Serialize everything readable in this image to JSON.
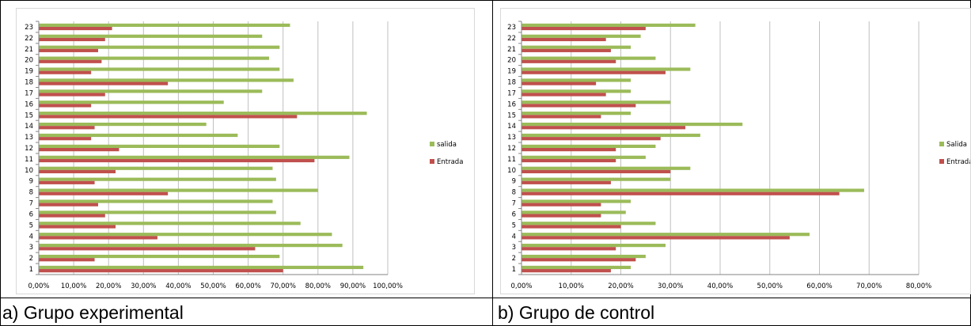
{
  "captions": {
    "a": "a) Grupo experimental",
    "b": "b) Grupo de control"
  },
  "colors": {
    "salida": "#9bbb59",
    "entrada": "#c0504d",
    "grid": "#c0c0c0",
    "axis": "#868686"
  },
  "chart_data": [
    {
      "type": "bar",
      "orientation": "horizontal",
      "categories": [
        "1",
        "2",
        "3",
        "4",
        "5",
        "6",
        "7",
        "8",
        "9",
        "10",
        "11",
        "12",
        "13",
        "14",
        "15",
        "16",
        "17",
        "18",
        "19",
        "20",
        "21",
        "22",
        "23"
      ],
      "series": [
        {
          "name": "salida",
          "color": "#9bbb59",
          "values": [
            93,
            69,
            87,
            84,
            75,
            68,
            67,
            80,
            68,
            67,
            89,
            69,
            57,
            48,
            94,
            53,
            64,
            73,
            69,
            66,
            69,
            64,
            72
          ]
        },
        {
          "name": "Entrada",
          "color": "#c0504d",
          "values": [
            70,
            16,
            62,
            34,
            22,
            19,
            17,
            37,
            16,
            22,
            79,
            23,
            15,
            16,
            74,
            15,
            19,
            37,
            15,
            18,
            17,
            19,
            21
          ]
        }
      ],
      "xticks": [
        "0,00%",
        "10,00%",
        "20,00%",
        "30,00%",
        "40,00%",
        "50,00%",
        "60,00%",
        "70,00%",
        "80,00%",
        "90,00%",
        "100,00%"
      ],
      "xlim": [
        0,
        100
      ],
      "grid": "vertical",
      "legend": "right",
      "title": "",
      "xlabel": "",
      "ylabel": ""
    },
    {
      "type": "bar",
      "orientation": "horizontal",
      "categories": [
        "1",
        "2",
        "3",
        "4",
        "5",
        "6",
        "7",
        "8",
        "9",
        "10",
        "11",
        "12",
        "13",
        "14",
        "15",
        "16",
        "17",
        "18",
        "19",
        "20",
        "21",
        "22",
        "23"
      ],
      "series": [
        {
          "name": "Salida",
          "color": "#9bbb59",
          "values": [
            22,
            25,
            29,
            58,
            27,
            21,
            22,
            69,
            30,
            34,
            25,
            27,
            36,
            44.5,
            22,
            30,
            22,
            22,
            34,
            27,
            22,
            24,
            35
          ]
        },
        {
          "name": "Entrada",
          "color": "#c0504d",
          "values": [
            18,
            23,
            19,
            54,
            20,
            16,
            16,
            64,
            18,
            30,
            19,
            19,
            28,
            33,
            16,
            23,
            17,
            15,
            29,
            19,
            18,
            17,
            25
          ]
        }
      ],
      "xticks": [
        "0,00%",
        "10,00%",
        "20,00%",
        "30,00%",
        "40,00%",
        "50,00%",
        "60,00%",
        "70,00%",
        "80,00%"
      ],
      "xlim": [
        0,
        80
      ],
      "grid": "vertical",
      "legend": "right",
      "title": "",
      "xlabel": "",
      "ylabel": ""
    }
  ]
}
